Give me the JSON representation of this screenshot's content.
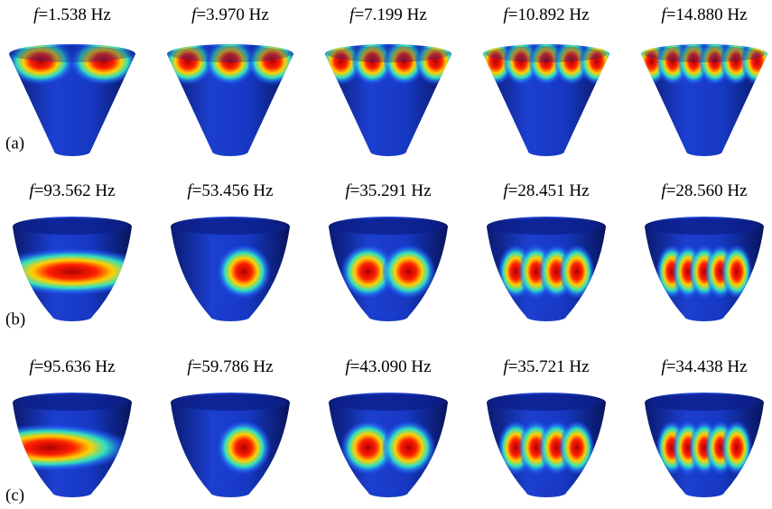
{
  "rows": [
    {
      "label": "(a)",
      "panels": [
        "f=1.538 Hz",
        "f=3.970 Hz",
        "f=7.199 Hz",
        "f=10.892 Hz",
        "f=14.880 Hz"
      ]
    },
    {
      "label": "(b)",
      "panels": [
        "f=93.562 Hz",
        "f=53.456 Hz",
        "f=35.291 Hz",
        "f=28.451 Hz",
        "f=28.560 Hz"
      ]
    },
    {
      "label": "(c)",
      "panels": [
        "f=95.636 Hz",
        "f=59.786 Hz",
        "f=43.090 Hz",
        "f=35.721 Hz",
        "f=34.438 Hz"
      ]
    }
  ]
}
